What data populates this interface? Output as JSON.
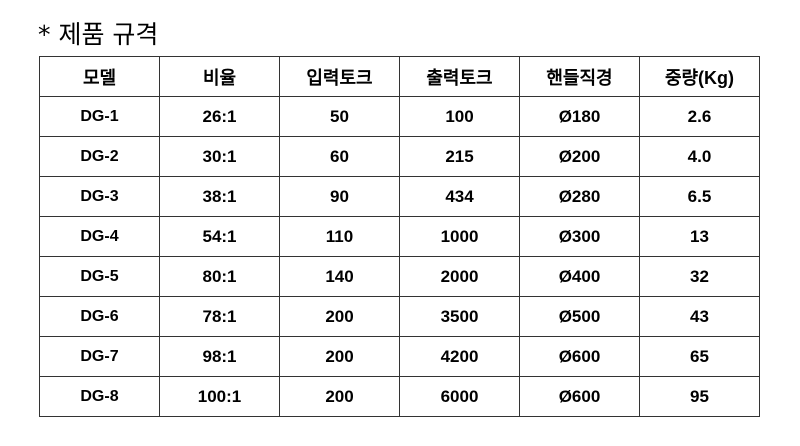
{
  "title": "* 제품 규격",
  "table": {
    "headers": [
      "모델",
      "비율",
      "입력토크",
      "출력토크",
      "핸들직경",
      "중량(Kg)"
    ],
    "rows": [
      [
        "DG-1",
        "26:1",
        "50",
        "100",
        "Ø180",
        "2.6"
      ],
      [
        "DG-2",
        "30:1",
        "60",
        "215",
        "Ø200",
        "4.0"
      ],
      [
        "DG-3",
        "38:1",
        "90",
        "434",
        "Ø280",
        "6.5"
      ],
      [
        "DG-4",
        "54:1",
        "110",
        "1000",
        "Ø300",
        "13"
      ],
      [
        "DG-5",
        "80:1",
        "140",
        "2000",
        "Ø400",
        "32"
      ],
      [
        "DG-6",
        "78:1",
        "200",
        "3500",
        "Ø500",
        "43"
      ],
      [
        "DG-7",
        "98:1",
        "200",
        "4200",
        "Ø600",
        "65"
      ],
      [
        "DG-8",
        "100:1",
        "200",
        "6000",
        "Ø600",
        "95"
      ]
    ]
  }
}
